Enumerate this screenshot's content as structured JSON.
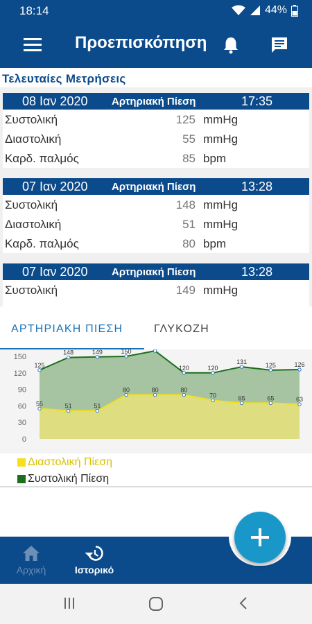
{
  "status_bar": {
    "time": "18:14",
    "battery": "44%"
  },
  "app_bar": {
    "title": "Προεπισκόπηση",
    "icons": [
      "menu-icon",
      "bell-icon",
      "message-icon"
    ]
  },
  "recent": {
    "heading": "Τελευταίες Μετρήσεις",
    "cards": [
      {
        "date": "08 Ιαν 2020",
        "type": "Αρτηριακή Πίεση",
        "time": "17:35",
        "rows": [
          {
            "label": "Συστολική",
            "value": "125",
            "unit": "mmHg"
          },
          {
            "label": "Διαστολική",
            "value": "55",
            "unit": "mmHg"
          },
          {
            "label": "Καρδ. παλμός",
            "value": "85",
            "unit": "bpm"
          }
        ]
      },
      {
        "date": "07 Ιαν 2020",
        "type": "Αρτηριακή Πίεση",
        "time": "13:28",
        "rows": [
          {
            "label": "Συστολική",
            "value": "148",
            "unit": "mmHg"
          },
          {
            "label": "Διαστολική",
            "value": "51",
            "unit": "mmHg"
          },
          {
            "label": "Καρδ. παλμός",
            "value": "80",
            "unit": "bpm"
          }
        ]
      },
      {
        "date": "07 Ιαν 2020",
        "type": "Αρτηριακή Πίεση",
        "time": "13:28",
        "rows": [
          {
            "label": "Συστολική",
            "value": "149",
            "unit": "mmHg"
          }
        ]
      }
    ]
  },
  "tabs": {
    "tab1": "ΑΡΤΗΡΙΑΚΗ ΠΙΕΣΗ",
    "tab2": "ΓΛΥΚΟΖΗ",
    "active": "tab1"
  },
  "chart_data": {
    "type": "area",
    "x": [
      1,
      2,
      3,
      4,
      5,
      6,
      7,
      8,
      9,
      10
    ],
    "yticks": [
      0,
      30,
      60,
      90,
      120,
      150
    ],
    "ylim": [
      0,
      150
    ],
    "series": [
      {
        "name": "Συστολική Πίεση",
        "color": "#1b6e1b",
        "fill": "#a6c4a2",
        "values": [
          125,
          148,
          149,
          150,
          160,
          120,
          120,
          131,
          125,
          126
        ]
      },
      {
        "name": "Διαστολική Πίεση",
        "color": "#f6df1c",
        "fill": "#dede80",
        "values": [
          55,
          51,
          51,
          80,
          80,
          80,
          70,
          65,
          65,
          63
        ]
      }
    ]
  },
  "legend": {
    "diastolic": "Διαστολική Πίεση",
    "systolic": "Συστολική Πίεση"
  },
  "bottom_nav": {
    "home": "Αρχική",
    "history": "Ιστορικό"
  },
  "colors": {
    "primary": "#0b4a8b",
    "accent": "#1a97c9"
  }
}
